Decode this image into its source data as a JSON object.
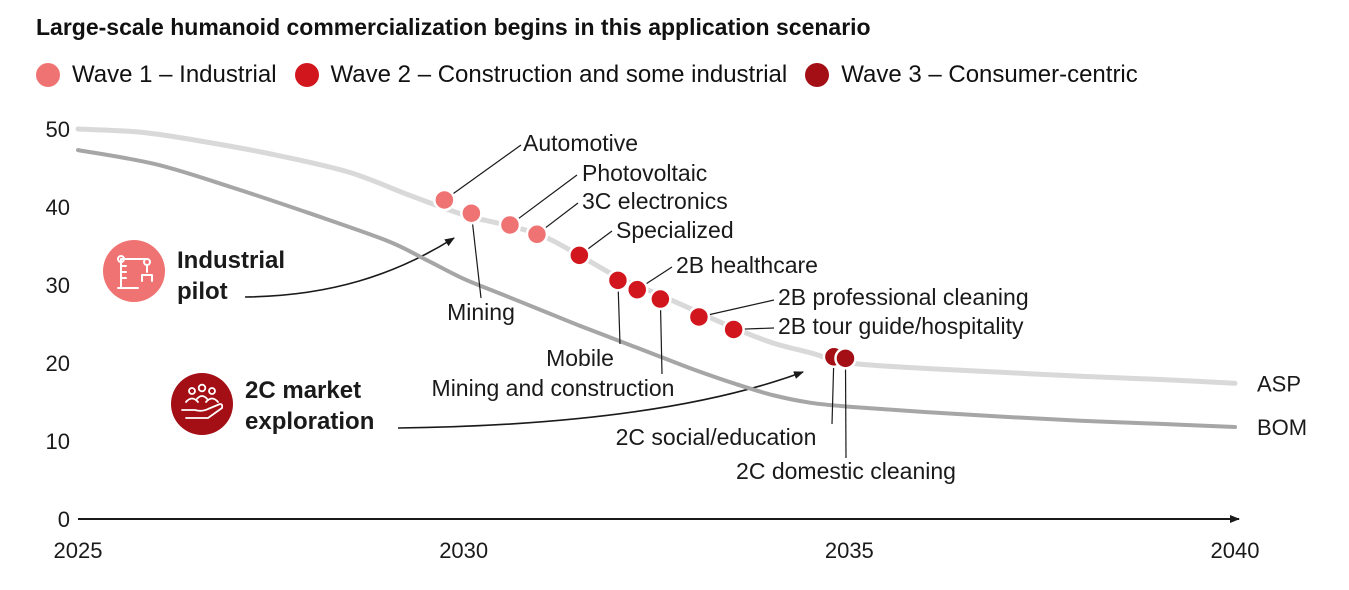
{
  "chart_data": {
    "type": "line",
    "title": "Large-scale humanoid commercialization begins in this application scenario",
    "xlabel": "",
    "ylabel": "",
    "xlim": [
      2025,
      2040
    ],
    "ylim": [
      0,
      50
    ],
    "x_ticks": [
      "2025",
      "2030",
      "2035",
      "2040"
    ],
    "y_ticks": [
      "0",
      "10",
      "20",
      "30",
      "40",
      "50"
    ],
    "grid": false,
    "legend_position": "top-left",
    "waves": [
      {
        "name": "Wave 1 – Industrial",
        "color": "#f07373"
      },
      {
        "name": "Wave 2 – Construction and some industrial",
        "color": "#d2161e"
      },
      {
        "name": "Wave 3 – Consumer-centric",
        "color": "#a30f14"
      }
    ],
    "series": [
      {
        "name": "ASP",
        "color": "#d9d9d9",
        "width": 5,
        "x": [
          2025,
          2025.8,
          2026.5,
          2027.5,
          2028.5,
          2029.3,
          2030,
          2030.5,
          2031,
          2031.5,
          2032,
          2032.5,
          2033,
          2033.5,
          2034,
          2034.5,
          2035,
          2036,
          2037,
          2038,
          2039,
          2040
        ],
        "y": [
          50,
          49.6,
          48.6,
          46.8,
          44.5,
          41.5,
          39,
          37.8,
          36.4,
          33.8,
          31,
          28.9,
          26.7,
          24.5,
          22.6,
          21.3,
          20,
          19.3,
          18.8,
          18.3,
          17.9,
          17.4
        ]
      },
      {
        "name": "BOM",
        "color": "#a6a6a6",
        "width": 4,
        "x": [
          2025,
          2026,
          2027,
          2028,
          2029,
          2029.5,
          2030,
          2030.5,
          2031,
          2031.5,
          2032,
          2032.5,
          2033,
          2033.5,
          2034,
          2034.5,
          2035,
          2036,
          2037,
          2038,
          2039,
          2040
        ],
        "y": [
          47.3,
          45.5,
          42.5,
          39.2,
          35.7,
          33.3,
          30.8,
          28.8,
          26.8,
          24.8,
          22.9,
          21,
          19.1,
          17.4,
          15.9,
          14.9,
          14.4,
          13.7,
          13.1,
          12.6,
          12.2,
          11.8
        ]
      }
    ],
    "points": [
      {
        "label": "Automotive",
        "x": 2029.75,
        "y": 40.9,
        "wave": 0
      },
      {
        "label": "Mining",
        "x": 2030.1,
        "y": 39.2,
        "wave": 0
      },
      {
        "label": "Photovoltaic",
        "x": 2030.6,
        "y": 37.7,
        "wave": 0
      },
      {
        "label": "3C electronics",
        "x": 2030.95,
        "y": 36.5,
        "wave": 0
      },
      {
        "label": "Specialized",
        "x": 2031.5,
        "y": 33.8,
        "wave": 1
      },
      {
        "label": "Mobile",
        "x": 2032.0,
        "y": 30.6,
        "wave": 1
      },
      {
        "label": "2B healthcare",
        "x": 2032.25,
        "y": 29.4,
        "wave": 1
      },
      {
        "label": "Mining and construction",
        "x": 2032.55,
        "y": 28.2,
        "wave": 1
      },
      {
        "label": "2B professional cleaning",
        "x": 2033.05,
        "y": 25.9,
        "wave": 1
      },
      {
        "label": "2B tour guide/hospitality",
        "x": 2033.5,
        "y": 24.3,
        "wave": 1
      },
      {
        "label": "2C social/education",
        "x": 2034.8,
        "y": 20.8,
        "wave": 2
      },
      {
        "label": "2C domestic cleaning",
        "x": 2034.95,
        "y": 20.6,
        "wave": 2
      }
    ],
    "annotations": [
      {
        "text": [
          "Industrial",
          "pilot"
        ],
        "icon": "robot-arm-icon",
        "icon_color": "#f07373"
      },
      {
        "text": [
          "2C market",
          "exploration"
        ],
        "icon": "people-hand-icon",
        "icon_color": "#a30f14"
      }
    ]
  }
}
